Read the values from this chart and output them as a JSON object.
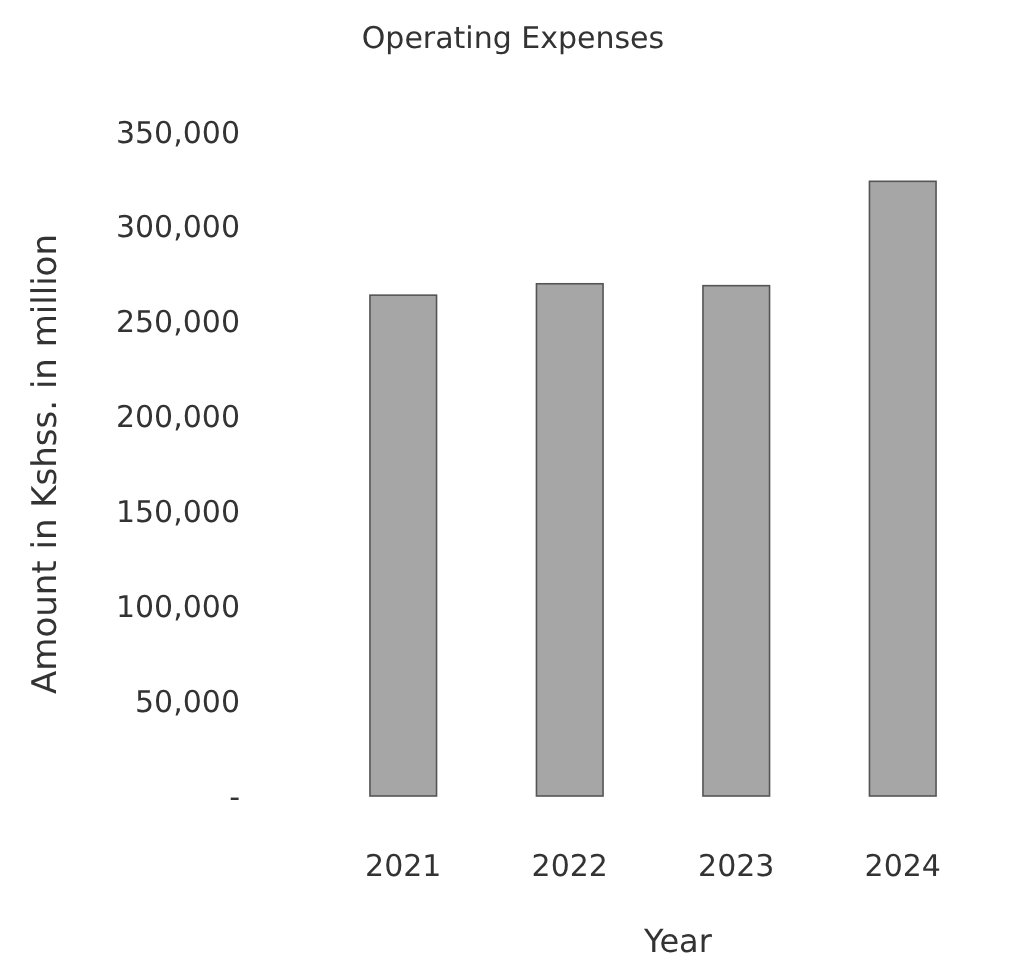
{
  "chart_data": {
    "type": "bar",
    "title": "Operating Expenses",
    "xlabel": "Year",
    "ylabel": "Amount in Kshss. in million",
    "categories": [
      "2021",
      "2022",
      "2023",
      "2024"
    ],
    "values": [
      264000,
      270000,
      269000,
      324000
    ],
    "color": "#a6a6a6",
    "ylim": [
      0,
      350000
    ],
    "yticks": [
      {
        "value": 0,
        "label": "-"
      },
      {
        "value": 50000,
        "label": "50,000"
      },
      {
        "value": 100000,
        "label": "100,000"
      },
      {
        "value": 150000,
        "label": "150,000"
      },
      {
        "value": 200000,
        "label": "200,000"
      },
      {
        "value": 250000,
        "label": "250,000"
      },
      {
        "value": 300000,
        "label": "300,000"
      },
      {
        "value": 350000,
        "label": "350,000"
      }
    ],
    "grid": false
  }
}
